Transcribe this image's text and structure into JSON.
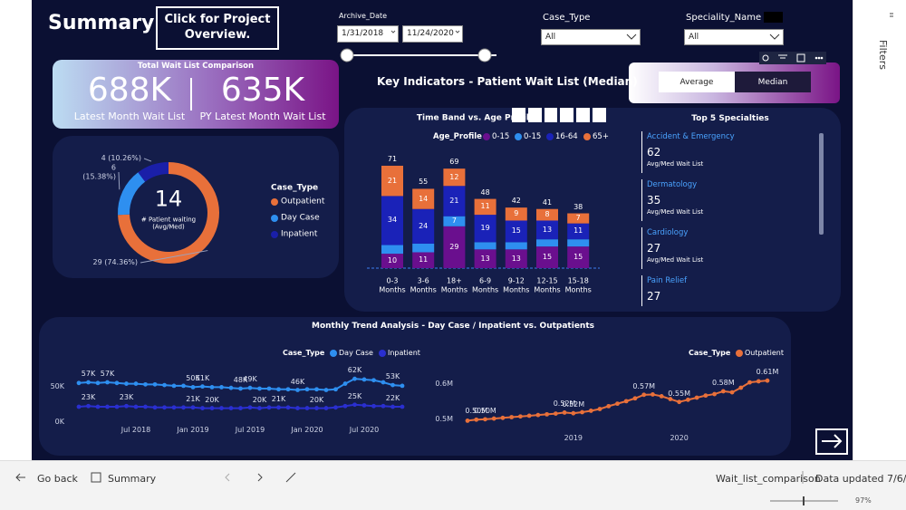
{
  "app": {
    "title": "Summary",
    "project_button": "Click for Project Overview.",
    "filters": {
      "archive_date": {
        "label": "Archive_Date",
        "start": "1/31/2018",
        "end": "11/24/2020"
      },
      "case_type": {
        "label": "Case_Type",
        "value": "All"
      },
      "speciality": {
        "label": "Speciality_Name",
        "value": "All"
      }
    },
    "kpi": {
      "title": "Total Wait List Comparison",
      "current": "688K",
      "current_label": "Latest Month Wait List",
      "previous": "635K",
      "previous_label": "PY Latest Month Wait List"
    },
    "key_indicators_title": "Key Indicators - Patient Wait List (Median)",
    "toggle": [
      "Average",
      "Median"
    ],
    "specialties": {
      "title": "Top 5 Specialties",
      "items": [
        {
          "name": "Accident & Emergency",
          "value": 62,
          "label": "Avg/Med Wait List"
        },
        {
          "name": "Dermatology",
          "value": 35,
          "label": "Avg/Med Wait List"
        },
        {
          "name": "Cardiology",
          "value": 27,
          "label": "Avg/Med Wait List"
        },
        {
          "name": "Pain Relief",
          "value": 27
        }
      ]
    },
    "trend_title": "Monthly Trend Analysis - Day Case / Inpatient vs. Outpatients",
    "side_panel": "Filters",
    "footer": {
      "back": "Go back",
      "page": "Summary",
      "file": "Wait_list_comparison",
      "updated": "Data updated 7/6/...",
      "zoom": "97%"
    }
  },
  "chart_data": [
    {
      "type": "donut",
      "center_value": 14,
      "center_label": "# Patient waiting (Avg/Med)",
      "legend_title": "Case_Type",
      "categories": [
        "Outpatient",
        "Day Case",
        "Inpatient"
      ],
      "values": [
        29,
        6,
        4
      ],
      "value_labels": [
        "29 (74.36%)",
        "6 (15.38%)",
        "4 (10.26%)"
      ],
      "colors": [
        "#e8703a",
        "#2e8ff0",
        "#1a1fa8"
      ]
    },
    {
      "type": "stacked_bar",
      "title": "Time Band vs. Age Profile",
      "legend_title": "Age_Profile",
      "categories": [
        "0-3 Months",
        "3-6 Months",
        "18+ Months",
        "6-9 Months",
        "9-12 Months",
        "12-15 Months",
        "15-18 Months"
      ],
      "ylim": [
        0,
        75
      ],
      "series": [
        {
          "name": "0-15",
          "color": "#6a0f8e",
          "values": [
            10,
            11,
            29,
            13,
            13,
            15,
            15
          ],
          "labeled": [
            true,
            true,
            true,
            true,
            true,
            true,
            true
          ]
        },
        {
          "name": "0-15",
          "color": "#2e8ff0",
          "values": [
            6,
            6,
            7,
            5,
            5,
            5,
            5
          ],
          "labeled": [
            false,
            false,
            true,
            false,
            false,
            false,
            false
          ]
        },
        {
          "name": "16-64",
          "color": "#1a22b8",
          "values": [
            34,
            24,
            21,
            19,
            15,
            13,
            11
          ],
          "labeled": [
            true,
            true,
            true,
            true,
            true,
            true,
            true
          ]
        },
        {
          "name": "65+",
          "color": "#e8703a",
          "values": [
            21,
            14,
            12,
            11,
            9,
            8,
            7
          ],
          "labeled": [
            true,
            true,
            true,
            true,
            true,
            true,
            true
          ]
        }
      ],
      "totals": [
        71,
        55,
        69,
        48,
        42,
        41,
        38
      ]
    },
    {
      "type": "line",
      "legend_title": "Case_Type",
      "x": [
        "2018-01",
        "2018-02",
        "2018-03",
        "2018-04",
        "2018-05",
        "2018-06",
        "2018-07",
        "2018-08",
        "2018-09",
        "2018-10",
        "2018-11",
        "2018-12",
        "2019-01",
        "2019-02",
        "2019-03",
        "2019-04",
        "2019-05",
        "2019-06",
        "2019-07",
        "2019-08",
        "2019-09",
        "2019-10",
        "2019-11",
        "2019-12",
        "2020-01",
        "2020-02",
        "2020-03",
        "2020-04",
        "2020-05",
        "2020-06",
        "2020-07",
        "2020-08",
        "2020-09",
        "2020-10",
        "2020-11"
      ],
      "xticks": [
        {
          "value": "2018-07",
          "label": "Jul 2018"
        },
        {
          "value": "2019-01",
          "label": "Jan 2019"
        },
        {
          "value": "2019-07",
          "label": "Jul 2019"
        },
        {
          "value": "2020-01",
          "label": "Jan 2020"
        },
        {
          "value": "2020-07",
          "label": "Jul 2020"
        }
      ],
      "ylim": [
        0,
        70000
      ],
      "yticks": [
        {
          "value": 0,
          "label": "0K"
        },
        {
          "value": 50000,
          "label": "50K"
        }
      ],
      "series": [
        {
          "name": "Day Case",
          "color": "#2e8ff0",
          "values": [
            56000,
            57000,
            56000,
            57000,
            56000,
            55000,
            55000,
            54000,
            54000,
            53000,
            52000,
            52000,
            50000,
            51000,
            50000,
            50000,
            49000,
            48000,
            49000,
            48000,
            48000,
            47000,
            47000,
            46000,
            47000,
            47000,
            46000,
            47000,
            55000,
            62000,
            61000,
            60000,
            57000,
            53000,
            52000
          ],
          "value_labels": [
            null,
            "57K",
            null,
            "57K",
            null,
            null,
            null,
            null,
            null,
            null,
            null,
            null,
            "50K",
            "51K",
            null,
            null,
            null,
            "48K",
            "49K",
            null,
            null,
            null,
            null,
            "46K",
            null,
            null,
            null,
            null,
            null,
            "62K",
            null,
            null,
            null,
            "53K",
            null
          ]
        },
        {
          "name": "Inpatient",
          "color": "#2a2fd0",
          "values": [
            22000,
            23000,
            22000,
            22000,
            22000,
            23000,
            22000,
            22000,
            21000,
            21000,
            21000,
            21000,
            21000,
            20000,
            20000,
            20000,
            20000,
            20000,
            21000,
            20000,
            21000,
            21000,
            21000,
            20000,
            20000,
            20000,
            20000,
            21000,
            23000,
            25000,
            24000,
            23000,
            23000,
            22000,
            22000
          ],
          "value_labels": [
            null,
            "23K",
            null,
            null,
            null,
            "23K",
            null,
            null,
            null,
            null,
            null,
            null,
            "21K",
            null,
            "20K",
            null,
            null,
            null,
            null,
            "20K",
            null,
            "21K",
            null,
            null,
            null,
            "20K",
            null,
            null,
            null,
            "25K",
            null,
            null,
            null,
            "22K",
            null
          ]
        }
      ]
    },
    {
      "type": "line",
      "legend_title": "Case_Type",
      "x": [
        "2018-01",
        "2018-02",
        "2018-03",
        "2018-04",
        "2018-05",
        "2018-06",
        "2018-07",
        "2018-08",
        "2018-09",
        "2018-10",
        "2018-11",
        "2018-12",
        "2019-01",
        "2019-02",
        "2019-03",
        "2019-04",
        "2019-05",
        "2019-06",
        "2019-07",
        "2019-08",
        "2019-09",
        "2019-10",
        "2019-11",
        "2019-12",
        "2020-01",
        "2020-02",
        "2020-03",
        "2020-04",
        "2020-05",
        "2020-06",
        "2020-07",
        "2020-08",
        "2020-09",
        "2020-10",
        "2020-11"
      ],
      "xticks": [
        {
          "value": "2019-01",
          "label": "2019"
        },
        {
          "value": "2020-01",
          "label": "2020"
        }
      ],
      "ylim": [
        470000,
        650000
      ],
      "yticks": [
        {
          "value": 500000,
          "label": "0.5M"
        },
        {
          "value": 600000,
          "label": "0.6M"
        }
      ],
      "series": [
        {
          "name": "Outpatient",
          "color": "#e8703a",
          "values": [
            497000,
            500000,
            501000,
            503000,
            505000,
            507000,
            509000,
            511000,
            513000,
            515000,
            517000,
            520000,
            518000,
            521000,
            525000,
            530000,
            538000,
            545000,
            552000,
            560000,
            570000,
            571000,
            566000,
            558000,
            550000,
            556000,
            562000,
            568000,
            572000,
            580000,
            577000,
            590000,
            605000,
            608000,
            610000
          ],
          "value_labels": [
            null,
            "0.50M",
            "0.50M",
            null,
            null,
            null,
            null,
            null,
            null,
            null,
            null,
            "0.52M",
            "0.52M",
            null,
            null,
            null,
            null,
            null,
            null,
            null,
            "0.57M",
            null,
            null,
            null,
            "0.55M",
            null,
            null,
            null,
            null,
            "0.58M",
            null,
            null,
            null,
            null,
            "0.61M"
          ]
        }
      ]
    }
  ]
}
